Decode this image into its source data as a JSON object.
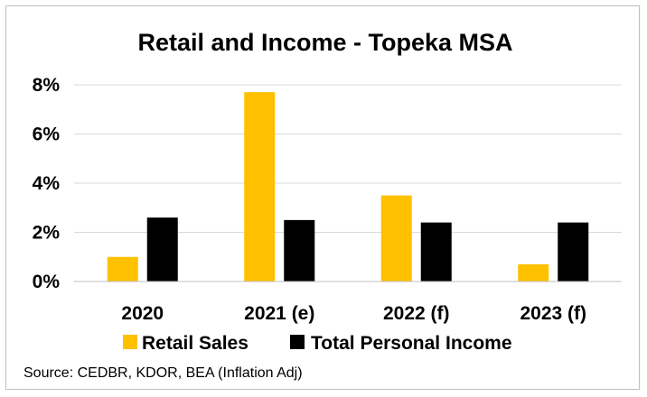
{
  "chart_data": {
    "type": "bar",
    "title": "Retail and Income - Topeka MSA",
    "categories": [
      "2020",
      "2021 (e)",
      "2022 (f)",
      "2023 (f)"
    ],
    "series": [
      {
        "name": "Retail Sales",
        "color": "#FFC000",
        "values": [
          1.0,
          7.7,
          3.5,
          0.7
        ]
      },
      {
        "name": "Total Personal Income",
        "color": "#000000",
        "values": [
          2.6,
          2.5,
          2.4,
          2.4
        ]
      }
    ],
    "y_ticks": [
      "0%",
      "2%",
      "4%",
      "6%",
      "8%"
    ],
    "ylim": [
      0,
      8
    ],
    "grid": true,
    "legend_position": "bottom",
    "xlabel": "",
    "ylabel": ""
  },
  "source_note": "Source: CEDBR, KDOR, BEA (Inflation Adj)"
}
